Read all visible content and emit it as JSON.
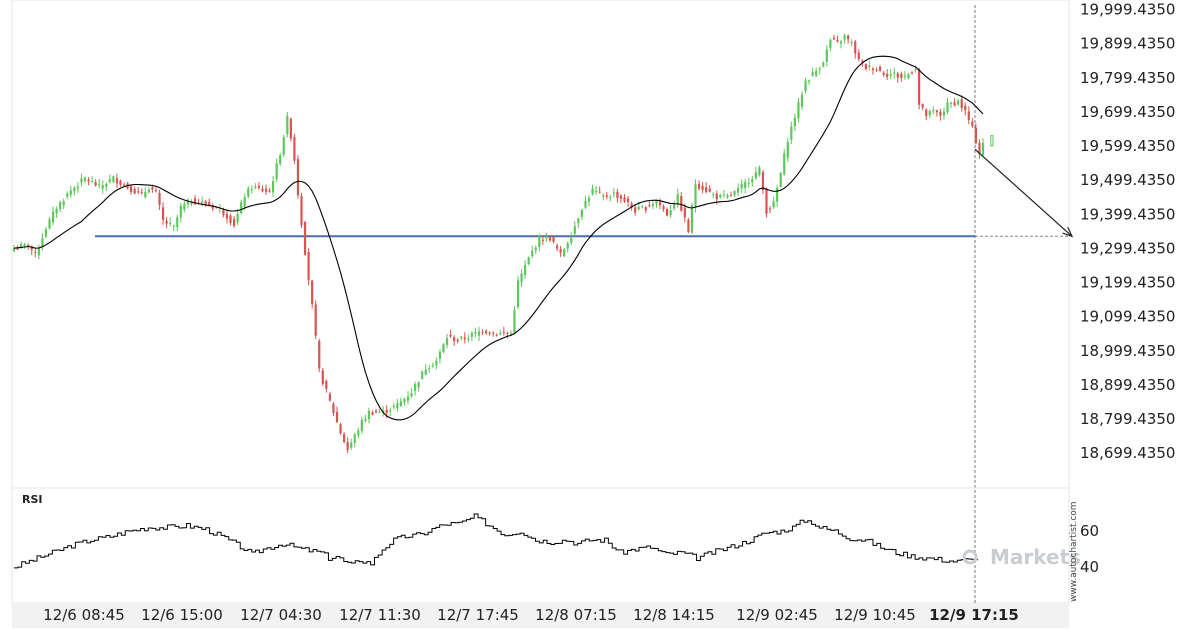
{
  "chart_data": [
    {
      "type": "candlestick",
      "title": "",
      "ylim": [
        18650,
        20010
      ],
      "yticks": [
        "19,999.4350",
        "19,899.4350",
        "19,799.4350",
        "19,699.4350",
        "19,599.4350",
        "19,499.4350",
        "19,399.4350",
        "19,299.4350",
        "19,199.4350",
        "19,099.4350",
        "18,999.4350",
        "18,899.4350",
        "18,799.4350",
        "18,699.4350"
      ],
      "ytick_values": [
        19999.435,
        19899.435,
        19799.435,
        19699.435,
        19599.435,
        19499.435,
        19399.435,
        19299.435,
        19199.435,
        19099.435,
        18999.435,
        18899.435,
        18799.435,
        18699.435
      ],
      "xticks": [
        "12/6 08:45",
        "12/6 15:00",
        "12/7 04:30",
        "12/7 11:30",
        "12/7 17:45",
        "12/8 07:15",
        "12/8 14:15",
        "12/9 02:45",
        "12/9 10:45",
        "12/9 17:15"
      ],
      "xtick_bold": "12/9 17:15",
      "support_level": 19335,
      "projection": {
        "from": 19590,
        "to": 19335
      },
      "up_color": "#5cc75c",
      "down_color": "#d9534f",
      "level_color": "#4a6fa5",
      "ma_color": "#000000",
      "price_waypoints": [
        [
          0,
          19300
        ],
        [
          4,
          19310
        ],
        [
          6,
          19280
        ],
        [
          9,
          19360
        ],
        [
          12,
          19420
        ],
        [
          16,
          19470
        ],
        [
          20,
          19505
        ],
        [
          24,
          19480
        ],
        [
          28,
          19505
        ],
        [
          32,
          19480
        ],
        [
          36,
          19455
        ],
        [
          38,
          19480
        ],
        [
          40,
          19460
        ],
        [
          42,
          19380
        ],
        [
          45,
          19360
        ],
        [
          47,
          19420
        ],
        [
          50,
          19440
        ],
        [
          54,
          19430
        ],
        [
          58,
          19415
        ],
        [
          60,
          19395
        ],
        [
          62,
          19370
        ],
        [
          65,
          19455
        ],
        [
          67,
          19480
        ],
        [
          70,
          19470
        ],
        [
          72,
          19465
        ],
        [
          75,
          19580
        ],
        [
          77,
          19680
        ],
        [
          78,
          19630
        ],
        [
          79,
          19560
        ],
        [
          80,
          19460
        ],
        [
          82,
          19290
        ],
        [
          84,
          19130
        ],
        [
          86,
          18940
        ],
        [
          88,
          18880
        ],
        [
          90,
          18820
        ],
        [
          92,
          18760
        ],
        [
          94,
          18710
        ],
        [
          96,
          18750
        ],
        [
          98,
          18790
        ],
        [
          100,
          18820
        ],
        [
          104,
          18820
        ],
        [
          108,
          18840
        ],
        [
          112,
          18880
        ],
        [
          116,
          18950
        ],
        [
          119,
          18970
        ],
        [
          122,
          19040
        ],
        [
          125,
          19030
        ],
        [
          128,
          19040
        ],
        [
          132,
          19060
        ],
        [
          136,
          19050
        ],
        [
          140,
          19050
        ],
        [
          142,
          19200
        ],
        [
          145,
          19270
        ],
        [
          148,
          19330
        ],
        [
          151,
          19330
        ],
        [
          154,
          19280
        ],
        [
          157,
          19340
        ],
        [
          160,
          19420
        ],
        [
          163,
          19470
        ],
        [
          166,
          19450
        ],
        [
          169,
          19460
        ],
        [
          172,
          19440
        ],
        [
          175,
          19410
        ],
        [
          178,
          19420
        ],
        [
          181,
          19440
        ],
        [
          184,
          19400
        ],
        [
          187,
          19450
        ],
        [
          190,
          19350
        ],
        [
          192,
          19490
        ],
        [
          195,
          19470
        ],
        [
          198,
          19450
        ],
        [
          201,
          19450
        ],
        [
          204,
          19470
        ],
        [
          207,
          19500
        ],
        [
          210,
          19530
        ],
        [
          212,
          19410
        ],
        [
          214,
          19430
        ],
        [
          216,
          19520
        ],
        [
          218,
          19620
        ],
        [
          221,
          19720
        ],
        [
          223,
          19790
        ],
        [
          226,
          19820
        ],
        [
          228,
          19850
        ],
        [
          230,
          19910
        ],
        [
          232,
          19900
        ],
        [
          234,
          19920
        ],
        [
          236,
          19900
        ],
        [
          238,
          19850
        ],
        [
          240,
          19830
        ],
        [
          242,
          19830
        ],
        [
          244,
          19820
        ],
        [
          246,
          19810
        ],
        [
          248,
          19810
        ],
        [
          250,
          19800
        ],
        [
          252,
          19810
        ],
        [
          254,
          19830
        ],
        [
          255,
          19720
        ],
        [
          257,
          19690
        ],
        [
          259,
          19700
        ],
        [
          261,
          19690
        ],
        [
          263,
          19720
        ],
        [
          266,
          19730
        ],
        [
          268,
          19700
        ],
        [
          270,
          19650
        ],
        [
          272,
          19580
        ],
        [
          273,
          19610
        ]
      ],
      "rsi": {
        "title": "RSI",
        "yticks": [
          "60",
          "40"
        ],
        "ytick_values": [
          60,
          40
        ],
        "ylim": [
          20,
          80
        ],
        "waypoints": [
          [
            0,
            40
          ],
          [
            5,
            44
          ],
          [
            10,
            48
          ],
          [
            15,
            52
          ],
          [
            20,
            55
          ],
          [
            25,
            57
          ],
          [
            30,
            60
          ],
          [
            35,
            62
          ],
          [
            40,
            62
          ],
          [
            45,
            63
          ],
          [
            50,
            61
          ],
          [
            55,
            56
          ],
          [
            60,
            50
          ],
          [
            62,
            47
          ],
          [
            65,
            50
          ],
          [
            70,
            53
          ],
          [
            75,
            50
          ],
          [
            80,
            48
          ],
          [
            82,
            45
          ],
          [
            84,
            46
          ],
          [
            86,
            43
          ],
          [
            88,
            41
          ],
          [
            90,
            44
          ],
          [
            93,
            42
          ],
          [
            96,
            50
          ],
          [
            99,
            55
          ],
          [
            102,
            57
          ],
          [
            106,
            58
          ],
          [
            110,
            62
          ],
          [
            113,
            64
          ],
          [
            116,
            64
          ],
          [
            118,
            66
          ],
          [
            120,
            68
          ],
          [
            124,
            63
          ],
          [
            128,
            58
          ],
          [
            132,
            60
          ],
          [
            136,
            55
          ],
          [
            140,
            54
          ],
          [
            144,
            55
          ],
          [
            147,
            53
          ],
          [
            150,
            55
          ],
          [
            154,
            55
          ],
          [
            158,
            48
          ],
          [
            162,
            50
          ],
          [
            166,
            51
          ],
          [
            170,
            47
          ],
          [
            174,
            48
          ],
          [
            178,
            45
          ],
          [
            182,
            48
          ],
          [
            185,
            50
          ],
          [
            188,
            52
          ],
          [
            192,
            55
          ],
          [
            196,
            59
          ],
          [
            200,
            60
          ],
          [
            203,
            62
          ],
          [
            206,
            66
          ],
          [
            208,
            65
          ],
          [
            210,
            62
          ],
          [
            214,
            60
          ],
          [
            218,
            56
          ],
          [
            222,
            55
          ],
          [
            226,
            51
          ],
          [
            230,
            48
          ],
          [
            234,
            46
          ],
          [
            238,
            45
          ],
          [
            242,
            44
          ],
          [
            246,
            43
          ],
          [
            248,
            44
          ]
        ]
      }
    }
  ],
  "watermark": "www.autochartist.com",
  "brand": "Markets"
}
